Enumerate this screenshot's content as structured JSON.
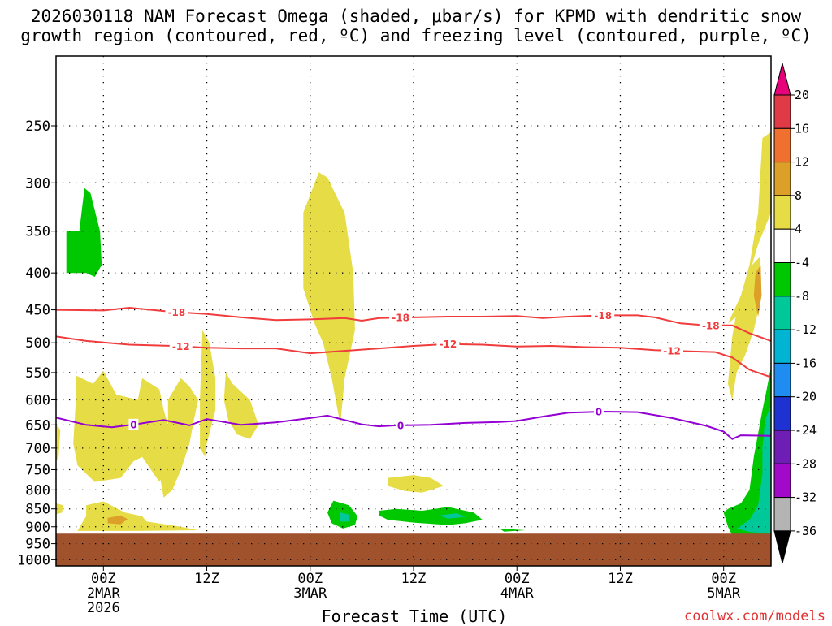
{
  "title_line1": "2026030118 NAM Forecast Omega (shaded, μbar/s) for KPMD with dendritic snow",
  "title_line2": "growth region (contoured, red, ºC) and freezing level (contoured, purple, ºC)",
  "xlabel": "Forecast Time (UTC)",
  "credit": "coolwx.com/models",
  "chart_data": {
    "type": "time-height cross section",
    "title": "2026030118 NAM Forecast Omega (shaded, μbar/s) for KPMD with dendritic snow growth region (contoured, red, ºC) and freezing level (contoured, purple, ºC)",
    "xlabel": "Forecast Time (UTC)",
    "ylabel": "",
    "x_range_hours_from_2MAR00Z": [
      -5.5,
      77.5
    ],
    "y_range_hPa": [
      1020,
      200
    ],
    "y_ticks": [
      250,
      300,
      350,
      400,
      450,
      500,
      550,
      600,
      650,
      700,
      750,
      800,
      850,
      900,
      950,
      1000
    ],
    "x_ticks": [
      {
        "hour": 0,
        "l1": "00Z",
        "l2": "2MAR",
        "l3": "2026"
      },
      {
        "hour": 12,
        "l1": "12Z",
        "l2": "",
        "l3": ""
      },
      {
        "hour": 24,
        "l1": "00Z",
        "l2": "3MAR",
        "l3": ""
      },
      {
        "hour": 36,
        "l1": "12Z",
        "l2": "",
        "l3": ""
      },
      {
        "hour": 48,
        "l1": "00Z",
        "l2": "4MAR",
        "l3": ""
      },
      {
        "hour": 60,
        "l1": "12Z",
        "l2": "",
        "l3": ""
      },
      {
        "hour": 72,
        "l1": "00Z",
        "l2": "5MAR",
        "l3": ""
      }
    ],
    "ground_below_hPa": 920,
    "colorbar": {
      "labels": [
        "20",
        "16",
        "12",
        "8",
        "4",
        "-4",
        "-8",
        "-12",
        "-16",
        "-20",
        "-24",
        "-28",
        "-32",
        "-36"
      ],
      "colors": [
        "#e03a46",
        "#f07030",
        "#dca028",
        "#e6dc46",
        "#ffffff",
        "#00c800",
        "#00c898",
        "#00b4d2",
        "#1e8cf0",
        "#1e32d2",
        "#6e1eb4",
        "#a00ac8",
        "#b4b4b4"
      ],
      "top_arrow": "#e6007a",
      "bottom_arrow": "#000000"
    },
    "contours": [
      {
        "label": "-18",
        "color": "#f03c3c",
        "label_hours": [
          8.5,
          34.5,
          58,
          70.5
        ],
        "points": [
          [
            -5.5,
            450
          ],
          [
            0,
            451
          ],
          [
            3,
            447
          ],
          [
            8,
            453
          ],
          [
            12,
            456
          ],
          [
            16,
            461
          ],
          [
            20,
            465
          ],
          [
            24,
            464
          ],
          [
            28,
            462
          ],
          [
            30,
            466
          ],
          [
            32,
            462
          ],
          [
            36,
            461
          ],
          [
            40,
            460
          ],
          [
            44,
            460
          ],
          [
            48,
            459
          ],
          [
            51,
            462
          ],
          [
            54,
            460
          ],
          [
            58,
            458
          ],
          [
            62,
            458
          ],
          [
            64,
            461
          ],
          [
            67,
            470
          ],
          [
            70,
            473
          ],
          [
            73,
            473
          ],
          [
            75,
            485
          ],
          [
            77.5,
            497
          ]
        ]
      },
      {
        "label": "-12",
        "color": "#f03c3c",
        "label_hours": [
          9,
          40,
          66
        ],
        "points": [
          [
            -5.5,
            490
          ],
          [
            -2,
            497
          ],
          [
            3,
            503
          ],
          [
            8,
            505
          ],
          [
            12,
            508
          ],
          [
            16,
            509
          ],
          [
            20,
            509
          ],
          [
            24,
            517
          ],
          [
            28,
            513
          ],
          [
            32,
            509
          ],
          [
            36,
            505
          ],
          [
            40,
            502
          ],
          [
            44,
            503
          ],
          [
            48,
            506
          ],
          [
            52,
            505
          ],
          [
            56,
            507
          ],
          [
            60,
            508
          ],
          [
            64,
            512
          ],
          [
            68,
            514
          ],
          [
            71,
            515
          ],
          [
            73,
            524
          ],
          [
            75,
            545
          ],
          [
            77.5,
            558
          ]
        ]
      },
      {
        "label": "0",
        "color": "#9400d3",
        "label_hours": [
          3.5,
          34.5,
          57.5
        ],
        "points": [
          [
            -5.5,
            635
          ],
          [
            -2,
            650
          ],
          [
            1,
            655
          ],
          [
            4,
            648
          ],
          [
            7,
            640
          ],
          [
            10,
            651
          ],
          [
            12,
            638
          ],
          [
            16,
            650
          ],
          [
            20,
            645
          ],
          [
            24,
            636
          ],
          [
            26,
            631
          ],
          [
            28,
            640
          ],
          [
            30,
            649
          ],
          [
            32,
            653
          ],
          [
            34,
            651
          ],
          [
            38,
            650
          ],
          [
            42,
            646
          ],
          [
            46,
            644
          ],
          [
            48,
            642
          ],
          [
            51,
            633
          ],
          [
            54,
            625
          ],
          [
            58,
            623
          ],
          [
            62,
            624
          ],
          [
            66,
            636
          ],
          [
            70,
            652
          ],
          [
            72,
            664
          ],
          [
            73,
            680
          ],
          [
            74,
            672
          ],
          [
            77.5,
            673
          ]
        ]
      }
    ],
    "omega_regions": [
      {
        "level": "4 to 8",
        "color": "#e6dc46",
        "points": [
          [
            25,
            290
          ],
          [
            26,
            295
          ],
          [
            28,
            330
          ],
          [
            29,
            400
          ],
          [
            29.2,
            480
          ],
          [
            28,
            560
          ],
          [
            27.5,
            650
          ],
          [
            26.5,
            560
          ],
          [
            25.5,
            500
          ],
          [
            24.5,
            470
          ],
          [
            23.2,
            420
          ],
          [
            23.2,
            330
          ]
        ]
      },
      {
        "level": "4 to 8",
        "color": "#e6dc46",
        "points": [
          [
            -3.2,
            555
          ],
          [
            -1.2,
            570
          ],
          [
            0,
            547
          ],
          [
            1.5,
            590
          ],
          [
            4,
            600
          ],
          [
            4.5,
            560
          ],
          [
            6.5,
            580
          ],
          [
            7,
            620
          ],
          [
            7.5,
            650
          ],
          [
            8,
            690
          ],
          [
            7.5,
            725
          ],
          [
            6.5,
            780
          ],
          [
            4.5,
            720
          ],
          [
            3.5,
            730
          ],
          [
            2,
            770
          ],
          [
            -1,
            780
          ],
          [
            -3,
            740
          ],
          [
            -3.5,
            690
          ],
          [
            -3.2,
            600
          ]
        ]
      },
      {
        "level": "4 to 8",
        "color": "#e6dc46",
        "points": [
          [
            7.5,
            600
          ],
          [
            9,
            560
          ],
          [
            10,
            575
          ],
          [
            11,
            600
          ],
          [
            10.5,
            640
          ],
          [
            10,
            690
          ],
          [
            9,
            750
          ],
          [
            8,
            800
          ],
          [
            7,
            820
          ],
          [
            6.5,
            760
          ],
          [
            7.5,
            680
          ]
        ]
      },
      {
        "level": "4 to 8",
        "color": "#e6dc46",
        "points": [
          [
            11.5,
            480
          ],
          [
            12.3,
            500
          ],
          [
            13,
            560
          ],
          [
            13,
            620
          ],
          [
            12,
            690
          ],
          [
            11.8,
            720
          ],
          [
            11.2,
            700
          ],
          [
            11.2,
            600
          ]
        ]
      },
      {
        "level": "4 to 8",
        "color": "#e6dc46",
        "points": [
          [
            14.2,
            550
          ],
          [
            15,
            570
          ],
          [
            17,
            600
          ],
          [
            18,
            650
          ],
          [
            17,
            680
          ],
          [
            15.5,
            670
          ],
          [
            14.5,
            640
          ],
          [
            14,
            600
          ]
        ]
      },
      {
        "level": "4 to 8",
        "color": "#e6dc46",
        "points": [
          [
            -5.5,
            650
          ],
          [
            -5,
            660
          ],
          [
            -5.2,
            720
          ],
          [
            -5.5,
            730
          ]
        ]
      },
      {
        "level": "4 to 8",
        "color": "#e6dc46",
        "points": [
          [
            -5.5,
            835
          ],
          [
            -4.7,
            840
          ],
          [
            -4.8,
            860
          ],
          [
            -5.5,
            865
          ]
        ]
      },
      {
        "level": "4 to 8",
        "color": "#e6dc46",
        "points": [
          [
            -2,
            840
          ],
          [
            0,
            830
          ],
          [
            2.5,
            860
          ],
          [
            4.5,
            870
          ],
          [
            5,
            885
          ],
          [
            9,
            900
          ],
          [
            11,
            910
          ],
          [
            4,
            912
          ],
          [
            -3,
            912
          ],
          [
            -2.5,
            890
          ],
          [
            -2,
            870
          ]
        ]
      },
      {
        "level": "4 to 8",
        "color": "#e6dc46",
        "points": [
          [
            33,
            770
          ],
          [
            36,
            763
          ],
          [
            38,
            770
          ],
          [
            39.5,
            790
          ],
          [
            37,
            807
          ],
          [
            35,
            803
          ],
          [
            33,
            790
          ]
        ]
      },
      {
        "level": "4 to 8",
        "color": "#e6dc46",
        "points": [
          [
            76.5,
            260
          ],
          [
            77.5,
            255
          ],
          [
            77.5,
            330
          ],
          [
            76,
            365
          ],
          [
            74.5,
            420
          ],
          [
            73.5,
            460
          ],
          [
            72.5,
            470
          ],
          [
            74,
            430
          ],
          [
            75,
            390
          ],
          [
            76,
            330
          ]
        ]
      },
      {
        "level": "4 to 8",
        "color": "#e6dc46",
        "points": [
          [
            75.3,
            390
          ],
          [
            76.2,
            380
          ],
          [
            76.4,
            430
          ],
          [
            75.5,
            480
          ],
          [
            74.5,
            520
          ],
          [
            73.5,
            550
          ],
          [
            73,
            600
          ],
          [
            72.5,
            570
          ],
          [
            72.8,
            520
          ],
          [
            73,
            490
          ],
          [
            73.7,
            440
          ]
        ]
      },
      {
        "level": "8 to 12",
        "color": "#dca028",
        "points": [
          [
            0.5,
            875
          ],
          [
            2,
            868
          ],
          [
            2.8,
            878
          ],
          [
            2,
            893
          ],
          [
            0.5,
            890
          ]
        ]
      },
      {
        "level": "8 to 12",
        "color": "#dca028",
        "points": [
          [
            75.7,
            400
          ],
          [
            76.3,
            390
          ],
          [
            76.4,
            430
          ],
          [
            76,
            460
          ],
          [
            75.5,
            430
          ]
        ]
      },
      {
        "level": "-4 to -8",
        "color": "#00c800",
        "points": [
          [
            -2.2,
            305
          ],
          [
            -1.5,
            310
          ],
          [
            -0.4,
            350
          ],
          [
            -0.2,
            390
          ],
          [
            -1,
            405
          ],
          [
            -2,
            400
          ],
          [
            -3.5,
            400
          ],
          [
            -4.3,
            400
          ],
          [
            -4.3,
            350
          ],
          [
            -2.8,
            350
          ]
        ]
      },
      {
        "level": "-4 to -8",
        "color": "#00c800",
        "points": [
          [
            26.7,
            828
          ],
          [
            28.5,
            840
          ],
          [
            29.5,
            870
          ],
          [
            29.2,
            895
          ],
          [
            27.8,
            905
          ],
          [
            26.5,
            890
          ],
          [
            26,
            860
          ]
        ]
      },
      {
        "level": "-4 to -8",
        "color": "#00c800",
        "points": [
          [
            32,
            855
          ],
          [
            34,
            850
          ],
          [
            37,
            855
          ],
          [
            40,
            845
          ],
          [
            43,
            860
          ],
          [
            44,
            880
          ],
          [
            42,
            890
          ],
          [
            40,
            895
          ],
          [
            36,
            888
          ],
          [
            33,
            880
          ],
          [
            32,
            868
          ]
        ]
      },
      {
        "level": "-4 to -8",
        "color": "#00c800",
        "points": [
          [
            46,
            905
          ],
          [
            49,
            910
          ],
          [
            46.5,
            914
          ]
        ]
      },
      {
        "level": "-4 to -8",
        "color": "#00c800",
        "points": [
          [
            77.5,
            540
          ],
          [
            77.5,
            925
          ],
          [
            73,
            925
          ],
          [
            72.5,
            900
          ],
          [
            72,
            860
          ],
          [
            72.5,
            850
          ],
          [
            74,
            835
          ],
          [
            75,
            800
          ],
          [
            75.5,
            720
          ],
          [
            76.5,
            620
          ],
          [
            77,
            580
          ]
        ]
      },
      {
        "level": "-8 to -12",
        "color": "#00c898",
        "points": [
          [
            76.8,
            640
          ],
          [
            77.5,
            610
          ],
          [
            77.5,
            920
          ],
          [
            75,
            915
          ],
          [
            73.5,
            905
          ],
          [
            75,
            880
          ],
          [
            76,
            840
          ],
          [
            76.5,
            760
          ],
          [
            76.5,
            700
          ]
        ]
      },
      {
        "level": "-8 to -12",
        "color": "#00c898",
        "points": [
          [
            27.5,
            860
          ],
          [
            28.5,
            865
          ],
          [
            28.6,
            885
          ],
          [
            27.5,
            885
          ]
        ]
      },
      {
        "level": "-8 to -12",
        "color": "#00c898",
        "points": [
          [
            39,
            868
          ],
          [
            41,
            862
          ],
          [
            42,
            872
          ],
          [
            40,
            877
          ]
        ]
      }
    ]
  }
}
